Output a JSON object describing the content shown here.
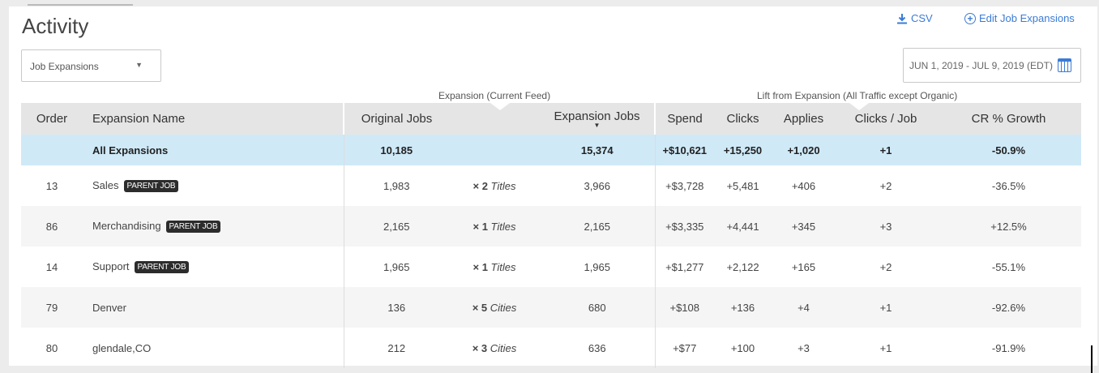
{
  "header": {
    "title": "Activity",
    "view_select": "Job Expansions",
    "csv_label": "CSV",
    "edit_label": "Edit Job Expansions",
    "date_range": "JUN 1, 2019 - JUL 9, 2019 (EDT)"
  },
  "groups": {
    "expansion": "Expansion (Current Feed)",
    "lift": "Lift from Expansion (All Traffic except Organic)"
  },
  "columns": {
    "order": "Order",
    "name": "Expansion Name",
    "original": "Original Jobs",
    "expansion": "Expansion Jobs",
    "spend": "Spend",
    "clicks": "Clicks",
    "applies": "Applies",
    "clicks_per_job": "Clicks / Job",
    "cr_growth": "CR % Growth"
  },
  "summary": {
    "name": "All Expansions",
    "original": "10,185",
    "expansion": "15,374",
    "spend": "+$10,621",
    "clicks": "+15,250",
    "applies": "+1,020",
    "clicks_per_job": "+1",
    "cr_growth": "-50.9%"
  },
  "rows": [
    {
      "order": "13",
      "name": "Sales",
      "badge": "PARENT JOB",
      "original": "1,983",
      "mult": "× 2",
      "unit": "Titles",
      "expansion": "3,966",
      "spend": "+$3,728",
      "clicks": "+5,481",
      "applies": "+406",
      "clicks_per_job": "+2",
      "cr_growth": "-36.5%"
    },
    {
      "order": "86",
      "name": "Merchandising",
      "badge": "PARENT JOB",
      "original": "2,165",
      "mult": "× 1",
      "unit": "Titles",
      "expansion": "2,165",
      "spend": "+$3,335",
      "clicks": "+4,441",
      "applies": "+345",
      "clicks_per_job": "+3",
      "cr_growth": "+12.5%"
    },
    {
      "order": "14",
      "name": "Support",
      "badge": "PARENT JOB",
      "original": "1,965",
      "mult": "× 1",
      "unit": "Titles",
      "expansion": "1,965",
      "spend": "+$1,277",
      "clicks": "+2,122",
      "applies": "+165",
      "clicks_per_job": "+2",
      "cr_growth": "-55.1%"
    },
    {
      "order": "79",
      "name": "Denver",
      "badge": "",
      "original": "136",
      "mult": "× 5",
      "unit": "Cities",
      "expansion": "680",
      "spend": "+$108",
      "clicks": "+136",
      "applies": "+4",
      "clicks_per_job": "+1",
      "cr_growth": "-92.6%"
    },
    {
      "order": "80",
      "name": "glendale,CO",
      "badge": "",
      "original": "212",
      "mult": "× 3",
      "unit": "Cities",
      "expansion": "636",
      "spend": "+$77",
      "clicks": "+100",
      "applies": "+3",
      "clicks_per_job": "+1",
      "cr_growth": "-91.9%"
    }
  ],
  "icons": {
    "csv": "download-icon",
    "edit": "plus-circle-icon",
    "date": "calendar-icon",
    "sort": "sort-desc-icon",
    "dropdown": "caret-down-icon"
  },
  "colors": {
    "link": "#3b7bd6",
    "summary_row": "#cfe9f7",
    "header_bg": "#e5e5e5",
    "badge_bg": "#2c2c2c"
  }
}
